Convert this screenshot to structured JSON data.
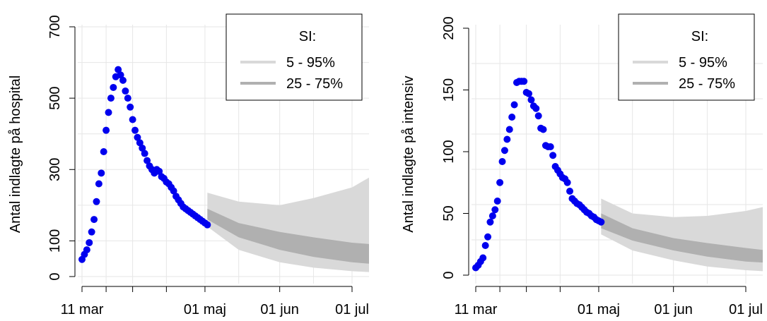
{
  "chart_data": [
    {
      "type": "line",
      "ylabel": "Antal indlagte på hospital",
      "xlabel": "",
      "ylim": [
        0,
        700
      ],
      "yticks": [
        0,
        100,
        300,
        500,
        700
      ],
      "xticks": [
        "11 mar",
        "01 maj",
        "01 jun",
        "01 jul"
      ],
      "xlim": [
        "2020-03-11",
        "2020-07-10"
      ],
      "grid": true,
      "legend": {
        "placement": "top-right",
        "title": "SI:",
        "entries": [
          {
            "label": "5 - 95%",
            "color": "#d9d9d9"
          },
          {
            "label": "25 - 75%",
            "color": "#b0b0b0"
          }
        ]
      },
      "series": [
        {
          "kind": "observed-points",
          "color": "#0000ee",
          "x": [
            "2020-03-11",
            "2020-03-12",
            "2020-03-13",
            "2020-03-14",
            "2020-03-15",
            "2020-03-16",
            "2020-03-17",
            "2020-03-18",
            "2020-03-19",
            "2020-03-20",
            "2020-03-21",
            "2020-03-22",
            "2020-03-23",
            "2020-03-24",
            "2020-03-25",
            "2020-03-26",
            "2020-03-27",
            "2020-03-28",
            "2020-03-29",
            "2020-03-30",
            "2020-03-31",
            "2020-04-01",
            "2020-04-02",
            "2020-04-03",
            "2020-04-04",
            "2020-04-05",
            "2020-04-06",
            "2020-04-07",
            "2020-04-08",
            "2020-04-09",
            "2020-04-10",
            "2020-04-11",
            "2020-04-12",
            "2020-04-13",
            "2020-04-14",
            "2020-04-15",
            "2020-04-16",
            "2020-04-17",
            "2020-04-18",
            "2020-04-19",
            "2020-04-20",
            "2020-04-21",
            "2020-04-22",
            "2020-04-23",
            "2020-04-24",
            "2020-04-25",
            "2020-04-26",
            "2020-04-27",
            "2020-04-28",
            "2020-04-29",
            "2020-04-30",
            "2020-05-01",
            "2020-05-02"
          ],
          "y": [
            48,
            62,
            75,
            95,
            125,
            160,
            210,
            260,
            290,
            350,
            410,
            460,
            500,
            530,
            560,
            580,
            565,
            550,
            520,
            500,
            475,
            440,
            410,
            390,
            375,
            360,
            345,
            325,
            310,
            300,
            290,
            300,
            295,
            280,
            275,
            265,
            260,
            250,
            240,
            225,
            215,
            205,
            195,
            190,
            185,
            180,
            175,
            170,
            165,
            160,
            155,
            150,
            145
          ]
        },
        {
          "kind": "band-5-95",
          "color": "#d9d9d9",
          "x": [
            "2020-05-02",
            "2020-05-15",
            "2020-06-01",
            "2020-06-15",
            "2020-07-01",
            "2020-07-10"
          ],
          "lower": [
            140,
            75,
            40,
            25,
            15,
            12
          ],
          "upper": [
            235,
            210,
            200,
            220,
            250,
            285
          ]
        },
        {
          "kind": "band-25-75",
          "color": "#b0b0b0",
          "x": [
            "2020-05-02",
            "2020-05-15",
            "2020-06-01",
            "2020-06-15",
            "2020-07-01",
            "2020-07-10"
          ],
          "lower": [
            160,
            110,
            75,
            55,
            40,
            35
          ],
          "upper": [
            190,
            150,
            125,
            110,
            95,
            90
          ]
        }
      ]
    },
    {
      "type": "line",
      "ylabel": "Antal indlagte på intensiv",
      "xlabel": "",
      "ylim": [
        0,
        200
      ],
      "yticks": [
        0,
        50,
        100,
        150,
        200
      ],
      "xticks": [
        "11 mar",
        "01 maj",
        "01 jun",
        "01 jul"
      ],
      "xlim": [
        "2020-03-11",
        "2020-07-10"
      ],
      "grid": true,
      "legend": {
        "placement": "top-right",
        "title": "SI:",
        "entries": [
          {
            "label": "5 - 95%",
            "color": "#d9d9d9"
          },
          {
            "label": "25 - 75%",
            "color": "#b0b0b0"
          }
        ]
      },
      "series": [
        {
          "kind": "observed-points",
          "color": "#0000ee",
          "x": [
            "2020-03-11",
            "2020-03-12",
            "2020-03-13",
            "2020-03-14",
            "2020-03-15",
            "2020-03-16",
            "2020-03-17",
            "2020-03-18",
            "2020-03-19",
            "2020-03-20",
            "2020-03-21",
            "2020-03-22",
            "2020-03-23",
            "2020-03-24",
            "2020-03-25",
            "2020-03-26",
            "2020-03-27",
            "2020-03-28",
            "2020-03-29",
            "2020-03-30",
            "2020-03-31",
            "2020-04-01",
            "2020-04-02",
            "2020-04-03",
            "2020-04-04",
            "2020-04-05",
            "2020-04-06",
            "2020-04-07",
            "2020-04-08",
            "2020-04-09",
            "2020-04-10",
            "2020-04-11",
            "2020-04-12",
            "2020-04-13",
            "2020-04-14",
            "2020-04-15",
            "2020-04-16",
            "2020-04-17",
            "2020-04-18",
            "2020-04-19",
            "2020-04-20",
            "2020-04-21",
            "2020-04-22",
            "2020-04-23",
            "2020-04-24",
            "2020-04-25",
            "2020-04-26",
            "2020-04-27",
            "2020-04-28",
            "2020-04-29",
            "2020-04-30",
            "2020-05-01",
            "2020-05-02"
          ],
          "y": [
            6,
            8,
            11,
            14,
            24,
            31,
            43,
            48,
            53,
            60,
            75,
            92,
            101,
            110,
            118,
            128,
            138,
            156,
            157,
            157,
            157,
            148,
            147,
            142,
            137,
            135,
            129,
            119,
            118,
            105,
            104,
            104,
            97,
            88,
            85,
            82,
            79,
            78,
            75,
            68,
            62,
            60,
            58,
            57,
            55,
            53,
            51,
            50,
            48,
            47,
            45,
            44,
            43
          ]
        },
        {
          "kind": "band-5-95",
          "color": "#d9d9d9",
          "x": [
            "2020-05-02",
            "2020-05-15",
            "2020-06-01",
            "2020-06-15",
            "2020-07-01",
            "2020-07-10"
          ],
          "lower": [
            33,
            20,
            12,
            7,
            4,
            3
          ],
          "upper": [
            62,
            50,
            47,
            48,
            52,
            56
          ]
        },
        {
          "kind": "band-25-75",
          "color": "#b0b0b0",
          "x": [
            "2020-05-02",
            "2020-05-15",
            "2020-06-01",
            "2020-06-15",
            "2020-07-01",
            "2020-07-10"
          ],
          "lower": [
            38,
            28,
            20,
            15,
            11,
            10
          ],
          "upper": [
            50,
            38,
            30,
            26,
            22,
            20
          ]
        }
      ]
    }
  ]
}
